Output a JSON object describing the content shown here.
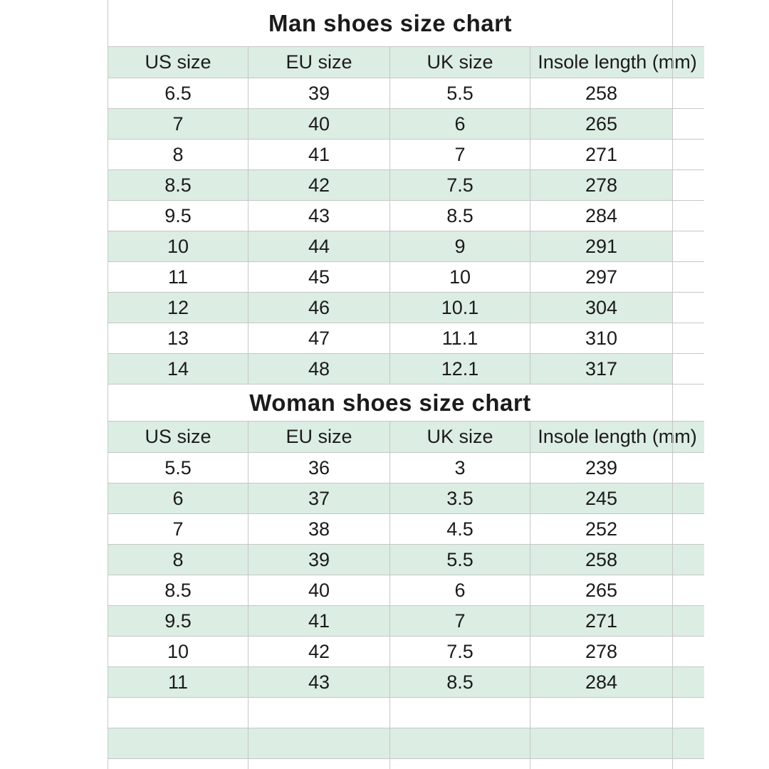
{
  "page": {
    "background": "#ffffff",
    "band_green": "#dcede3",
    "grid_line": "#c5c8c5",
    "text_color": "#1b1b1b"
  },
  "man_table": {
    "title": "Man shoes size chart",
    "headers": {
      "us": "US size",
      "eu": "EU size",
      "uk": "UK size",
      "insole": "Insole length (mm)"
    },
    "rows": [
      [
        "6.5",
        "39",
        "5.5",
        "258"
      ],
      [
        "7",
        "40",
        "6",
        "265"
      ],
      [
        "8",
        "41",
        "7",
        "271"
      ],
      [
        "8.5",
        "42",
        "7.5",
        "278"
      ],
      [
        "9.5",
        "43",
        "8.5",
        "284"
      ],
      [
        "10",
        "44",
        "9",
        "291"
      ],
      [
        "11",
        "45",
        "10",
        "297"
      ],
      [
        "12",
        "46",
        "10.1",
        "304"
      ],
      [
        "13",
        "47",
        "11.1",
        "310"
      ],
      [
        "14",
        "48",
        "12.1",
        "317"
      ]
    ]
  },
  "woman_table": {
    "title": "Woman shoes size chart",
    "headers": {
      "us": "US size",
      "eu": "EU size",
      "uk": "UK size",
      "insole": "Insole length (mm)"
    },
    "rows": [
      [
        "5.5",
        "36",
        "3",
        "239"
      ],
      [
        "6",
        "37",
        "3.5",
        "245"
      ],
      [
        "7",
        "38",
        "4.5",
        "252"
      ],
      [
        "8",
        "39",
        "5.5",
        "258"
      ],
      [
        "8.5",
        "40",
        "6",
        "265"
      ],
      [
        "9.5",
        "41",
        "7",
        "271"
      ],
      [
        "10",
        "42",
        "7.5",
        "278"
      ],
      [
        "11",
        "43",
        "8.5",
        "284"
      ]
    ]
  }
}
